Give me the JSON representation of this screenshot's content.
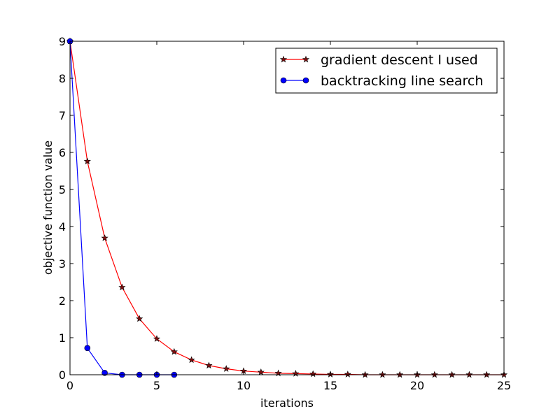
{
  "chart_data": {
    "type": "line",
    "xlabel": "iterations",
    "ylabel": "objective function value",
    "xlim": [
      0,
      25
    ],
    "ylim": [
      0,
      9
    ],
    "xticks": [
      0,
      5,
      10,
      15,
      20,
      25
    ],
    "yticks": [
      0,
      1,
      2,
      3,
      4,
      5,
      6,
      7,
      8,
      9
    ],
    "grid": false,
    "legend_position": "top-right",
    "series": [
      {
        "name": "gradient descent I used",
        "color": "#ff0000",
        "marker": "star",
        "x": [
          0,
          1,
          2,
          3,
          4,
          5,
          6,
          7,
          8,
          9,
          10,
          11,
          12,
          13,
          14,
          15,
          16,
          17,
          18,
          19,
          20,
          21,
          22,
          23,
          24,
          25
        ],
        "y": [
          9.0,
          5.76,
          3.69,
          2.36,
          1.51,
          0.97,
          0.62,
          0.4,
          0.25,
          0.16,
          0.1,
          0.07,
          0.04,
          0.03,
          0.02,
          0.01,
          0.01,
          0.0,
          0.0,
          0.0,
          0.0,
          0.0,
          0.0,
          0.0,
          0.0,
          0.0
        ]
      },
      {
        "name": "backtracking line search",
        "color": "#0000ff",
        "marker": "circle",
        "x": [
          0,
          1,
          2,
          3,
          4,
          5,
          6
        ],
        "y": [
          9.0,
          0.72,
          0.05,
          0.0,
          0.0,
          0.0,
          0.0
        ]
      }
    ]
  }
}
